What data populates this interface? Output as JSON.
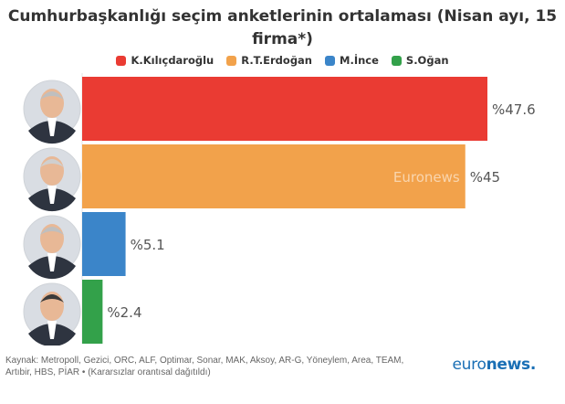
{
  "title": "Cumhurbaşkanlığı seçim anketlerinin ortalaması (Nisan ayı, 15 firma*)",
  "title_lines": [
    "Cumhurbaşkanlığı seçim anketlerinin ortalaması (Nisan ayı, 15",
    "firma*)"
  ],
  "source_lines": [
    "Kaynak: Metropoll, Gezici, ORC, ALF, Optimar, Sonar, MAK, Aksoy, AR-G, Yöneylem, Area, TEAM,",
    "Artıbir, HBS, PİAR • (Kararsızlar orantısal dağıtıldı)"
  ],
  "watermark": "Euronews",
  "brand": {
    "part1": "euro",
    "part2": "news."
  },
  "chart_data": {
    "type": "bar",
    "orientation": "horizontal",
    "categories": [
      "K.Kılıçdaroğlu",
      "R.T.Erdoğan",
      "M.İnce",
      "S.Oğan"
    ],
    "values": [
      47.6,
      45,
      5.1,
      2.4
    ],
    "value_labels": [
      "%47.6",
      "%45",
      "%5.1",
      "%2.4"
    ],
    "colors": [
      "#ea3b33",
      "#f2a24b",
      "#3b85c9",
      "#33a14a"
    ],
    "legend": [
      "K.Kılıçdaroğlu",
      "R.T.Erdoğan",
      "M.İnce",
      "S.Oğan"
    ],
    "legend_position": "top",
    "title": "Cumhurbaşkanlığı seçim anketlerinin ortalaması (Nisan ayı, 15 firma*)",
    "xlabel": "",
    "ylabel": "",
    "grid": false
  }
}
